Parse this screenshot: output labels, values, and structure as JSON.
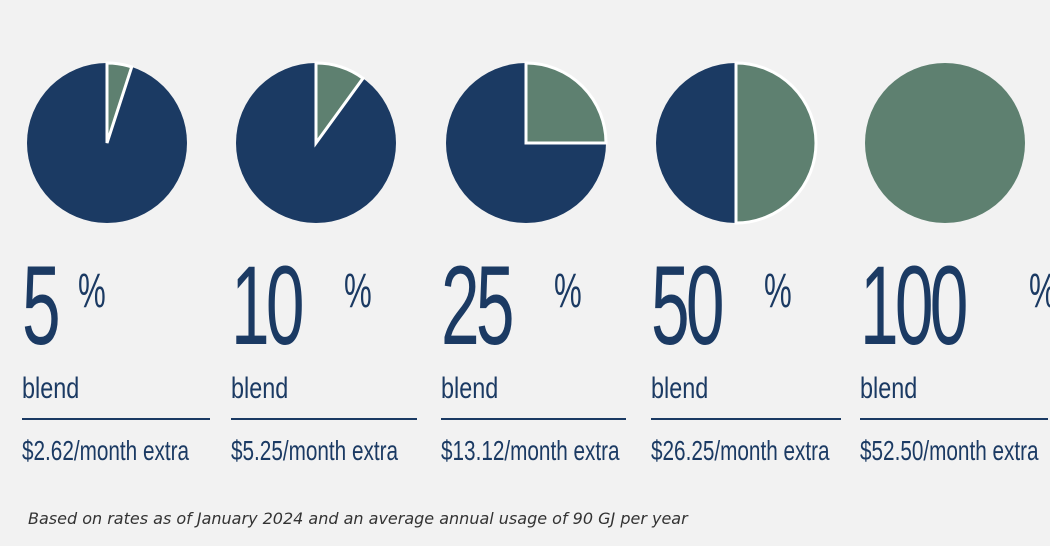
{
  "chart_data": [
    {
      "type": "pie",
      "percent": 5,
      "label": "5",
      "unit": "%",
      "caption": "blend",
      "cost": "$2.62/month extra"
    },
    {
      "type": "pie",
      "percent": 10,
      "label": "10",
      "unit": "%",
      "caption": "blend",
      "cost": "$5.25/month extra"
    },
    {
      "type": "pie",
      "percent": 25,
      "label": "25",
      "unit": "%",
      "caption": "blend",
      "cost": "$13.12/month extra"
    },
    {
      "type": "pie",
      "percent": 50,
      "label": "50",
      "unit": "%",
      "caption": "blend",
      "cost": "$26.25/month extra"
    },
    {
      "type": "pie",
      "percent": 100,
      "label": "100",
      "unit": "%",
      "caption": "blend",
      "cost": "$52.50/month extra"
    }
  ],
  "colors": {
    "primary": "#1b3a63",
    "blend": "#5e8070",
    "background": "#f2f2f2"
  },
  "footnote": "Based on rates as of January 2024 and an average annual usage of 90 GJ per year"
}
